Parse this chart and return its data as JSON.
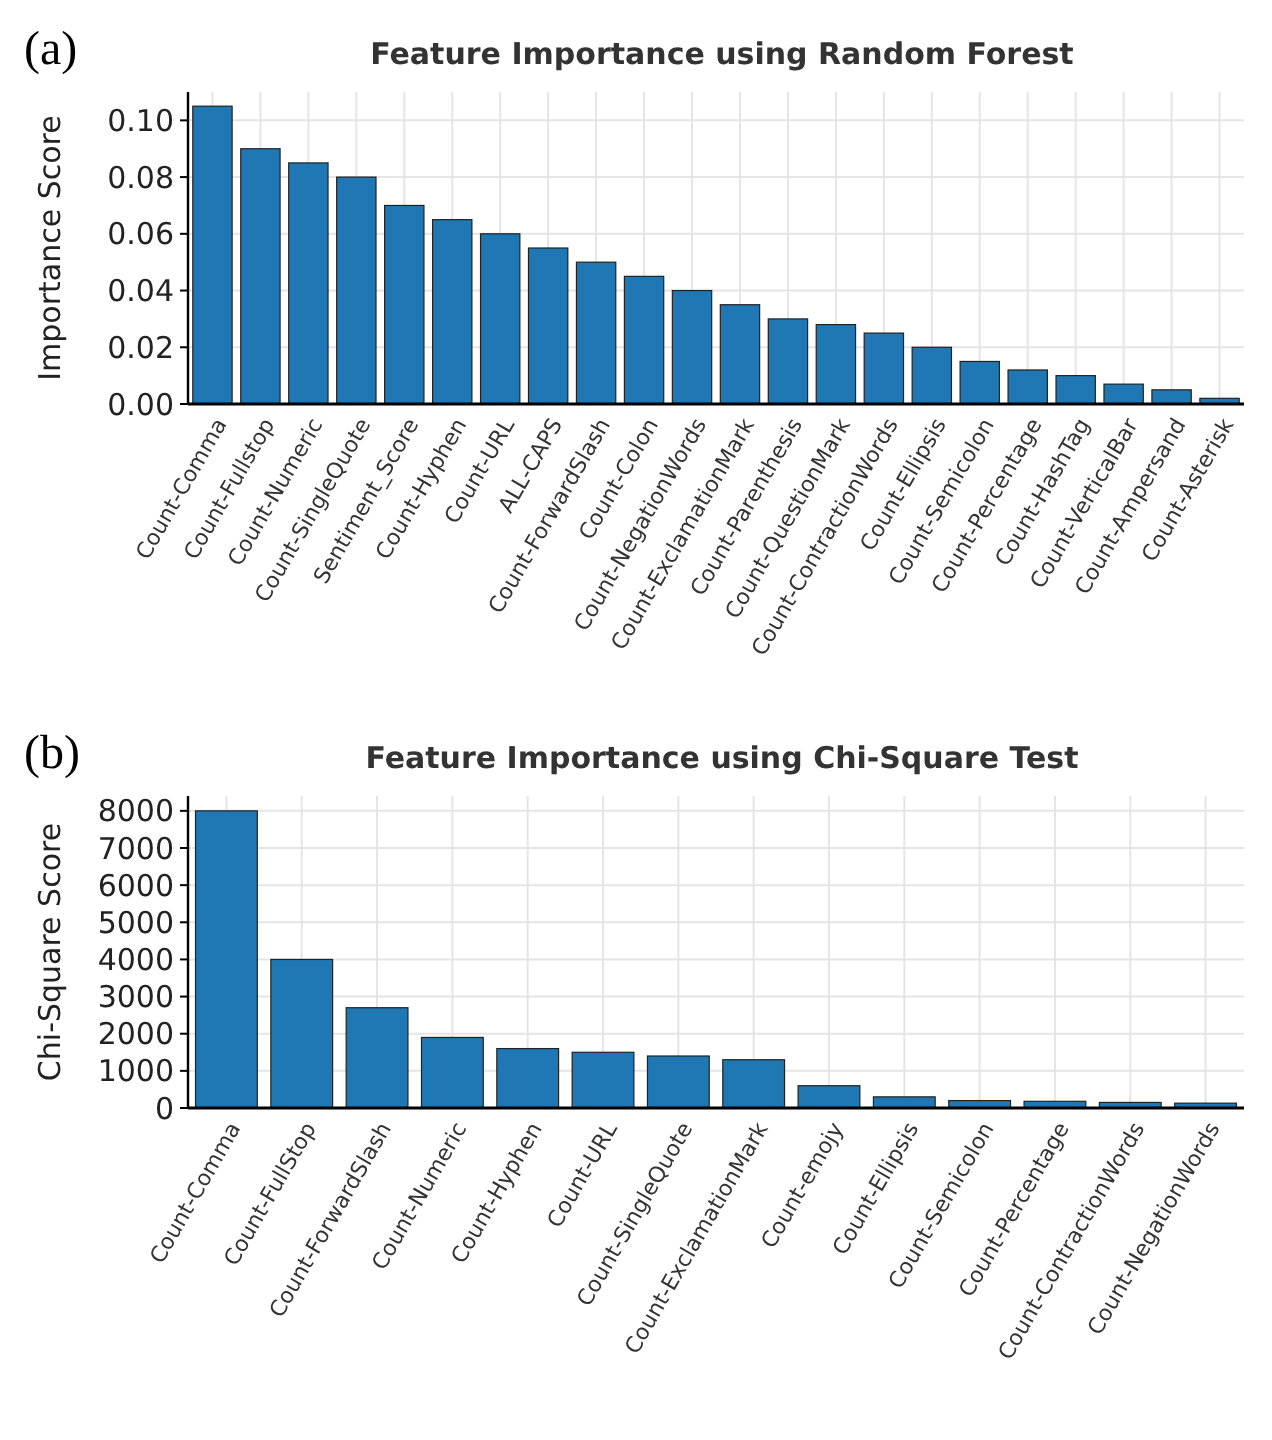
{
  "chart_data": [
    {
      "type": "bar",
      "title": "Feature Importance using Random Forest",
      "ylabel": "Importance Score",
      "annotations": [
        "(a)"
      ],
      "categories": [
        "Count-Comma",
        "Count-Fullstop",
        "Count-Numeric",
        "Count-SingleQuote",
        "Sentiment_Score",
        "Count-Hyphen",
        "Count-URL",
        "ALL-CAPS",
        "Count-ForwardSlash",
        "Count-Colon",
        "Count-NegationWords",
        "Count-ExclamationMark",
        "Count-Parenthesis",
        "Count-QuestionMark",
        "Count-ContractionWords",
        "Count-Ellipsis",
        "Count-Semicolon",
        "Count-Percentage",
        "Count-HashTag",
        "Count-VerticalBar",
        "Count-Ampersand",
        "Count-Asterisk"
      ],
      "values": [
        0.105,
        0.09,
        0.085,
        0.08,
        0.07,
        0.065,
        0.06,
        0.055,
        0.05,
        0.045,
        0.04,
        0.035,
        0.03,
        0.028,
        0.025,
        0.02,
        0.015,
        0.012,
        0.01,
        0.007,
        0.005,
        0.002
      ],
      "color": "#1f77b4",
      "ylim": [
        0,
        0.11
      ],
      "yticks": [
        {
          "value": 0,
          "label": "0.00"
        },
        {
          "value": 0.02,
          "label": "0.02"
        },
        {
          "value": 0.04,
          "label": "0.04"
        },
        {
          "value": 0.06,
          "label": "0.06"
        },
        {
          "value": 0.08,
          "label": "0.08"
        },
        {
          "value": 0.1,
          "label": "0.10"
        }
      ],
      "grid": true
    },
    {
      "type": "bar",
      "title": "Feature Importance using Chi-Square Test",
      "ylabel": "Chi-Square Score",
      "annotations": [
        "(b)"
      ],
      "categories": [
        "Count-Comma",
        "Count-FullStop",
        "Count-ForwardSlash",
        "Count-Numeric",
        "Count-Hyphen",
        "Count-URL",
        "Count-SingleQuote",
        "Count-ExclamationMark",
        "Count-emojy",
        "Count-Ellipsis",
        "Count-Semicolon",
        "Count-Percentage",
        "Count-ContractionWords",
        "Count-NegationWords"
      ],
      "values": [
        8000,
        4000,
        2700,
        1900,
        1600,
        1500,
        1400,
        1300,
        600,
        300,
        200,
        180,
        150,
        130
      ],
      "color": "#1f77b4",
      "ylim": [
        0,
        8400
      ],
      "yticks": [
        0,
        1000,
        2000,
        3000,
        4000,
        5000,
        6000,
        7000,
        8000
      ],
      "grid": true
    }
  ]
}
